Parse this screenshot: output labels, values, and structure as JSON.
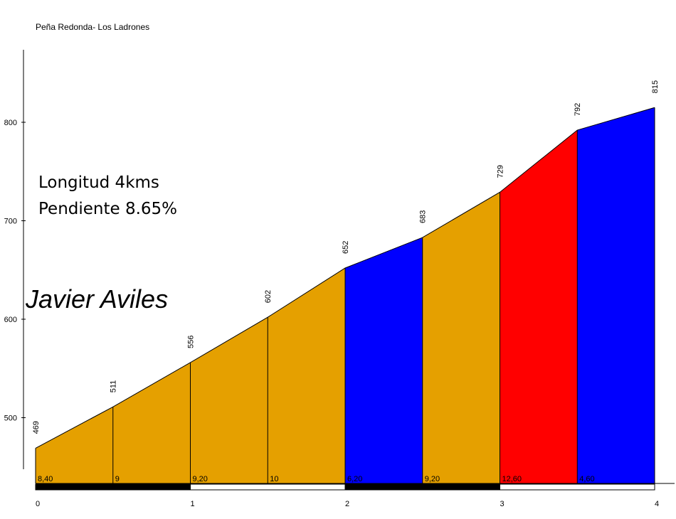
{
  "chart_data": {
    "type": "area",
    "title": "Peña Redonda- Los Ladrones",
    "x": [
      0,
      0.5,
      1,
      1.5,
      2,
      2.5,
      3,
      3.5,
      4
    ],
    "elevations": [
      469,
      511,
      556,
      602,
      652,
      683,
      729,
      792,
      815
    ],
    "segment_gradients": [
      "8,40",
      "9",
      "9,20",
      "10",
      "6,20",
      "9,20",
      "12,60",
      "4,60"
    ],
    "segment_colors": [
      "#e5a000",
      "#e5a000",
      "#e5a000",
      "#e5a000",
      "#0000ff",
      "#e5a000",
      "#ff0000",
      "#0000ff"
    ],
    "x_ticks": [
      "0",
      "1",
      "2",
      "3",
      "4"
    ],
    "y_ticks": [
      "500",
      "600",
      "700",
      "800"
    ],
    "xlim": [
      0,
      4
    ],
    "ylim": [
      450,
      875
    ],
    "grid": false
  },
  "info": {
    "length": "Longitud 4kms",
    "gradient": "Pendiente 8.65%"
  },
  "author": "Javier Aviles"
}
